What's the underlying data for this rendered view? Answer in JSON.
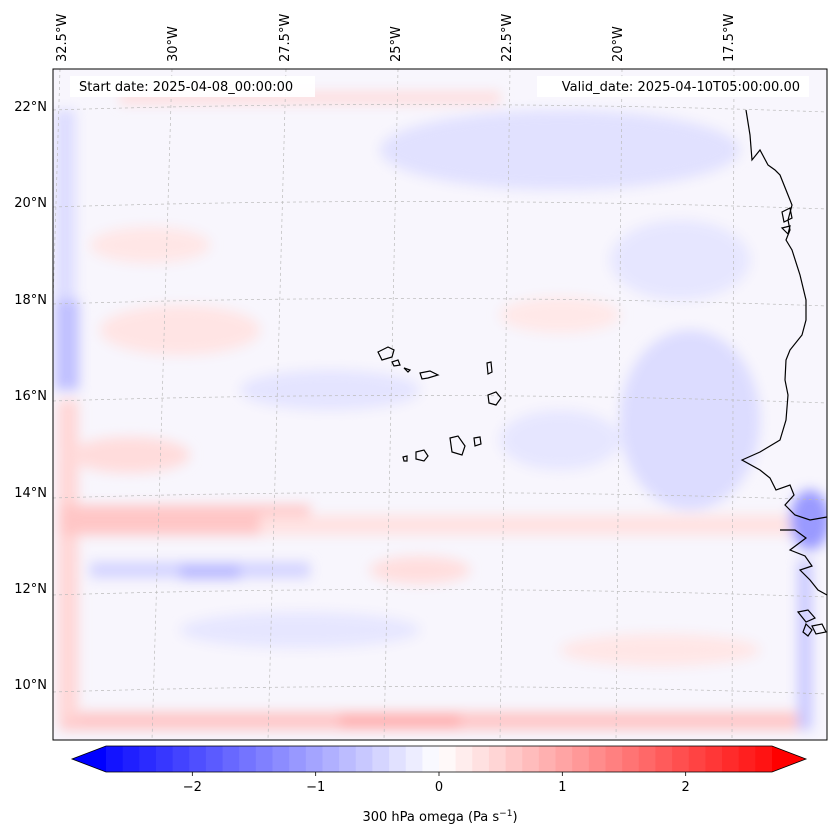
{
  "map": {
    "top_labels": [
      "32.5°W",
      "30°W",
      "27.5°W",
      "25°W",
      "22.5°W",
      "20°W",
      "17.5°W"
    ],
    "left_labels": [
      "22°N",
      "20°N",
      "18°N",
      "16°N",
      "14°N",
      "12°N",
      "10°N"
    ],
    "start_date": "Start date: 2025-04-08_00:00:00",
    "valid_date": "Valid_date: 2025-04-10T05:00:00.00",
    "field": "300 hPa omega",
    "colors": {
      "neg": "#0000ff",
      "zero": "#ffffff",
      "pos": "#ff0000",
      "coast": "#000000",
      "grid": "#bbbbbb"
    }
  },
  "colorbar": {
    "ticks": [
      "−2",
      "−1",
      "0",
      "1",
      "2"
    ],
    "tick_values": [
      -2,
      -1,
      0,
      1,
      2
    ],
    "range": [
      -2.7,
      2.7
    ],
    "label_main": "300 hPa omega (Pa s",
    "label_sup": "−1",
    "label_end": ")"
  }
}
